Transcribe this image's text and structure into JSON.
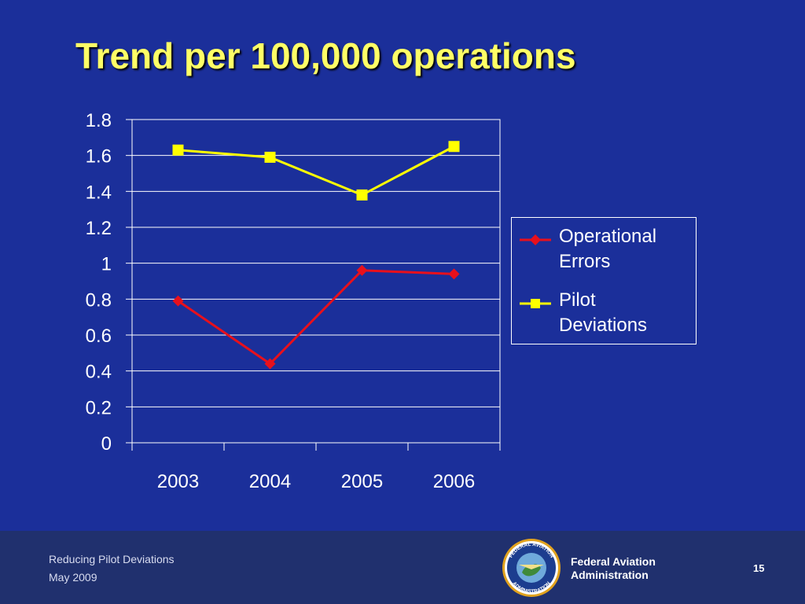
{
  "slide": {
    "title": "Trend per 100,000 operations",
    "footer_line1": "Reducing Pilot Deviations",
    "footer_line2": "May 2009",
    "agency_line1": "Federal Aviation",
    "agency_line2": "Administration",
    "page_number": "15",
    "seal_text_top": "FEDERAL AVIATION",
    "seal_text_bottom": "ADMINISTRATION"
  },
  "chart_data": {
    "type": "line",
    "categories": [
      "2003",
      "2004",
      "2005",
      "2006"
    ],
    "ylim": [
      0,
      1.8
    ],
    "yticks": [
      "0",
      "0.2",
      "0.4",
      "0.6",
      "0.8",
      "1",
      "1.2",
      "1.4",
      "1.6",
      "1.8"
    ],
    "grid": true,
    "legend_position": "right",
    "series": [
      {
        "name": "Operational Errors",
        "label_lines": [
          "Operational",
          "Errors"
        ],
        "color": "#e8101c",
        "marker": "diamond",
        "values": [
          0.79,
          0.44,
          0.96,
          0.94
        ]
      },
      {
        "name": "Pilot Deviations",
        "label_lines": [
          "Pilot",
          "Deviations"
        ],
        "color": "#ffff00",
        "marker": "square",
        "values": [
          1.63,
          1.59,
          1.38,
          1.65
        ]
      }
    ]
  }
}
